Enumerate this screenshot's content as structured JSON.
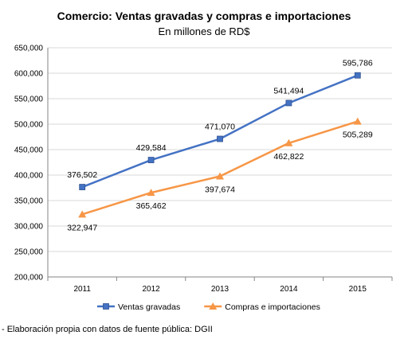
{
  "chart_data": {
    "type": "line",
    "title": "Comercio: Ventas gravadas  y compras e importaciones",
    "subtitle": "En millones de RD$",
    "xlabel": "",
    "ylabel": "",
    "categories": [
      "2011",
      "2012",
      "2013",
      "2014",
      "2015"
    ],
    "ylim": [
      200000,
      650000
    ],
    "yticks": [
      200000,
      250000,
      300000,
      350000,
      400000,
      450000,
      500000,
      550000,
      600000,
      650000
    ],
    "ytick_labels": [
      "200,000",
      "250,000",
      "300,000",
      "350,000",
      "400,000",
      "450,000",
      "500,000",
      "550,000",
      "600,000",
      "650,000"
    ],
    "grid": true,
    "legend_position": "bottom",
    "series": [
      {
        "name": "Ventas gravadas",
        "values": [
          376502,
          429584,
          471070,
          541494,
          595786
        ],
        "labels": [
          "376,502",
          "429,584",
          "471,070",
          "541,494",
          "595,786"
        ],
        "color": "#4472C4",
        "marker": "square",
        "label_position": "above"
      },
      {
        "name": "Compras e importaciones",
        "values": [
          322947,
          365462,
          397674,
          462822,
          505289
        ],
        "labels": [
          "322,947",
          "365,462",
          "397,674",
          "462,822",
          "505,289"
        ],
        "color": "#F79646",
        "marker": "triangle",
        "label_position": "below"
      }
    ]
  },
  "source_note": "- Elaboración propia con datos de fuente pública: DGII"
}
